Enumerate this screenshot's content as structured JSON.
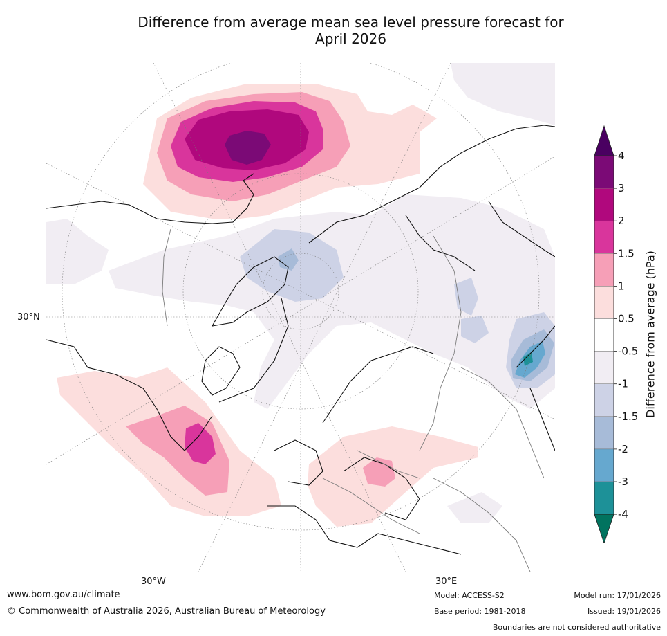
{
  "title_line1": "Difference from average mean sea level pressure forecast for",
  "title_line2": "April 2026",
  "map_axis_labels": {
    "left": "30°N",
    "bottom_left": "30°W",
    "bottom_right": "30°E"
  },
  "colorbar": {
    "label": "Difference from average (hPa)",
    "ticks": [
      "4",
      "3",
      "2",
      "1.5",
      "1",
      "0.5",
      "-0.5",
      "-1",
      "-1.5",
      "-2",
      "-3",
      "-4"
    ],
    "band_colors": [
      "#7b0a76",
      "#b0087d",
      "#d9359c",
      "#f69fb7",
      "#fcdedd",
      "#ffffff",
      "#f1edf3",
      "#cdd2e6",
      "#a7bbd8",
      "#66a8cf",
      "#1d9198"
    ],
    "top_arrow_color": "#4a0061",
    "bottom_arrow_color": "#01735f"
  },
  "footer": {
    "website": "www.bom.gov.au/climate",
    "copyright": "© Commonwealth of Australia 2026, Australian Bureau of Meteorology",
    "model": "Model: ACCESS-S2",
    "base_period": "Base period: 1981-2018",
    "model_run": "Model run: 17/01/2026",
    "issued": "Issued: 19/01/2026",
    "disclaimer": "Boundaries are not considered authoritative"
  }
}
